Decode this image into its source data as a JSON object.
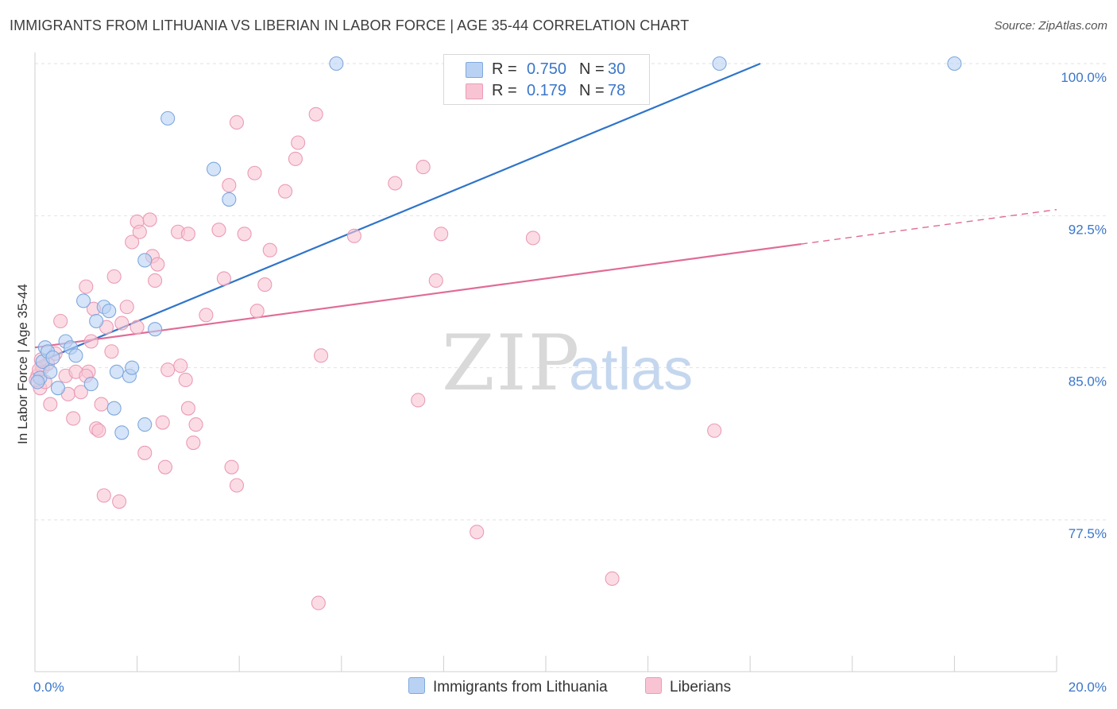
{
  "header": {
    "title": "IMMIGRANTS FROM LITHUANIA VS LIBERIAN IN LABOR FORCE | AGE 35-44 CORRELATION CHART",
    "source": "Source: ZipAtlas.com"
  },
  "watermark": {
    "zip": "ZIP",
    "atlas": "atlas"
  },
  "colors": {
    "blue_fill": "#b9d2f3",
    "blue_stroke": "#7fa8dd",
    "blue_line": "#2f74c9",
    "pink_fill": "#f8c4d4",
    "pink_stroke": "#eb9bb5",
    "pink_line": "#e06b96",
    "tick_label": "#3a76c9",
    "grid": "#e2e2e2"
  },
  "legend_top": {
    "rows": [
      {
        "r_label": "R =",
        "r_value": "0.750",
        "n_label": "N =",
        "n_value": "30"
      },
      {
        "r_label": "R =",
        "r_value": "0.179",
        "n_label": "N =",
        "n_value": "78"
      }
    ]
  },
  "legend_bottom": {
    "items": [
      {
        "label": "Immigrants from Lithuania"
      },
      {
        "label": "Liberians"
      }
    ]
  },
  "chart_data": {
    "type": "scatter",
    "title": "IMMIGRANTS FROM LITHUANIA VS LIBERIAN IN LABOR FORCE | AGE 35-44 CORRELATION CHART",
    "xlabel": "",
    "ylabel": "In Labor Force | Age 35-44",
    "xlim": [
      0,
      20
    ],
    "ylim": [
      71,
      101
    ],
    "x_tick_labels": [
      {
        "value": 0,
        "label": "0.0%"
      },
      {
        "value": 20,
        "label": "20.0%"
      }
    ],
    "y_tick_labels": [
      {
        "value": 100,
        "label": "100.0%"
      },
      {
        "value": 92.5,
        "label": "92.5%"
      },
      {
        "value": 85,
        "label": "85.0%"
      },
      {
        "value": 77.5,
        "label": "77.5%"
      }
    ],
    "series": [
      {
        "name": "Immigrants from Lithuania",
        "r": 0.75,
        "n": 30,
        "trend": {
          "x0": 0.0,
          "y0": 85.2,
          "x1": 14.2,
          "y1": 100.0,
          "dashed_to": null
        },
        "points": [
          [
            0.1,
            84.5
          ],
          [
            0.15,
            85.3
          ],
          [
            0.2,
            86.0
          ],
          [
            0.25,
            85.8
          ],
          [
            0.3,
            84.8
          ],
          [
            0.35,
            85.5
          ],
          [
            0.45,
            84.0
          ],
          [
            0.6,
            86.3
          ],
          [
            0.7,
            86.0
          ],
          [
            0.8,
            85.6
          ],
          [
            0.95,
            88.3
          ],
          [
            1.1,
            84.2
          ],
          [
            1.2,
            87.3
          ],
          [
            1.35,
            88.0
          ],
          [
            1.45,
            87.8
          ],
          [
            1.55,
            83.0
          ],
          [
            1.6,
            84.8
          ],
          [
            1.7,
            81.8
          ],
          [
            1.85,
            84.6
          ],
          [
            1.9,
            85.0
          ],
          [
            2.15,
            82.2
          ],
          [
            2.15,
            90.3
          ],
          [
            2.35,
            86.9
          ],
          [
            2.6,
            97.3
          ],
          [
            3.5,
            94.8
          ],
          [
            3.8,
            93.3
          ],
          [
            5.9,
            100.0
          ],
          [
            13.4,
            100.0
          ],
          [
            18.0,
            100.0
          ],
          [
            0.05,
            84.3
          ]
        ]
      },
      {
        "name": "Liberians",
        "r": 0.179,
        "n": 78,
        "trend": {
          "x0": 0.0,
          "y0": 86.0,
          "x1": 15.0,
          "y1": 91.1,
          "dashed_to": {
            "x": 20.0,
            "y": 92.8
          }
        },
        "points": [
          [
            0.05,
            84.6
          ],
          [
            0.1,
            84.0
          ],
          [
            0.15,
            85.0
          ],
          [
            0.2,
            84.3
          ],
          [
            0.25,
            85.2
          ],
          [
            0.3,
            83.2
          ],
          [
            0.4,
            85.7
          ],
          [
            0.5,
            87.3
          ],
          [
            0.6,
            84.6
          ],
          [
            0.65,
            83.7
          ],
          [
            0.75,
            82.5
          ],
          [
            0.8,
            84.8
          ],
          [
            0.9,
            83.8
          ],
          [
            1.0,
            89.0
          ],
          [
            1.05,
            84.8
          ],
          [
            1.1,
            86.3
          ],
          [
            1.15,
            87.9
          ],
          [
            1.2,
            82.0
          ],
          [
            1.25,
            81.9
          ],
          [
            1.3,
            83.2
          ],
          [
            1.35,
            78.7
          ],
          [
            1.4,
            87.0
          ],
          [
            1.5,
            85.8
          ],
          [
            1.55,
            89.5
          ],
          [
            1.65,
            78.4
          ],
          [
            1.7,
            87.2
          ],
          [
            1.8,
            88.0
          ],
          [
            1.9,
            91.2
          ],
          [
            2.0,
            92.2
          ],
          [
            2.05,
            91.7
          ],
          [
            2.15,
            80.8
          ],
          [
            2.25,
            92.3
          ],
          [
            2.3,
            90.5
          ],
          [
            2.35,
            89.3
          ],
          [
            2.4,
            90.1
          ],
          [
            2.5,
            82.3
          ],
          [
            2.55,
            80.1
          ],
          [
            2.6,
            84.9
          ],
          [
            2.8,
            91.7
          ],
          [
            2.85,
            85.1
          ],
          [
            2.95,
            84.4
          ],
          [
            3.0,
            91.6
          ],
          [
            3.1,
            81.3
          ],
          [
            3.15,
            82.2
          ],
          [
            3.35,
            87.6
          ],
          [
            3.6,
            91.8
          ],
          [
            3.7,
            89.4
          ],
          [
            3.8,
            94.0
          ],
          [
            3.85,
            80.1
          ],
          [
            3.95,
            79.2
          ],
          [
            3.95,
            97.1
          ],
          [
            4.1,
            91.6
          ],
          [
            4.3,
            94.6
          ],
          [
            4.35,
            87.8
          ],
          [
            4.5,
            89.1
          ],
          [
            4.6,
            90.8
          ],
          [
            4.9,
            93.7
          ],
          [
            5.1,
            95.3
          ],
          [
            5.15,
            96.1
          ],
          [
            5.5,
            97.5
          ],
          [
            5.55,
            73.4
          ],
          [
            5.6,
            85.6
          ],
          [
            6.25,
            91.5
          ],
          [
            7.05,
            94.1
          ],
          [
            7.5,
            83.4
          ],
          [
            7.6,
            94.9
          ],
          [
            7.85,
            89.3
          ],
          [
            7.95,
            91.6
          ],
          [
            8.65,
            76.9
          ],
          [
            9.75,
            91.4
          ],
          [
            11.3,
            74.6
          ],
          [
            13.3,
            81.9
          ],
          [
            0.02,
            84.4
          ],
          [
            0.08,
            84.9
          ],
          [
            0.12,
            85.4
          ],
          [
            1.0,
            84.6
          ],
          [
            2.0,
            87.0
          ],
          [
            3.0,
            83.0
          ]
        ]
      }
    ],
    "legend_position": "bottom-center"
  }
}
